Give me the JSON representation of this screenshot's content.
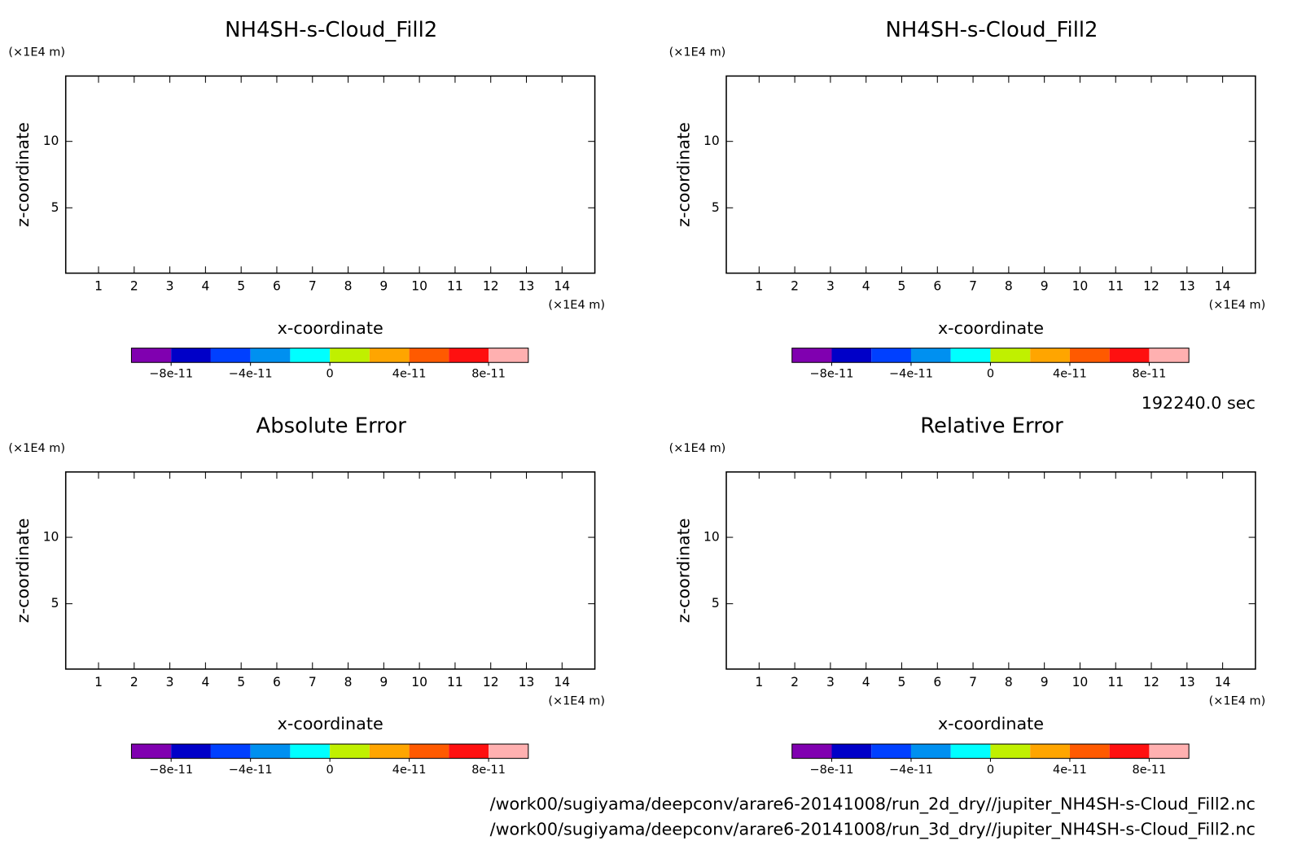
{
  "chart_data": [
    {
      "type": "contour",
      "title": "NH4SH-s-Cloud_Fill2",
      "xlabel": "x-coordinate",
      "ylabel": "z-coordinate",
      "x_unit": "(×1E4 m)",
      "y_unit": "(×1E4 m)",
      "xlim": [
        0.08,
        14.92
      ],
      "ylim": [
        0.08,
        14.92
      ],
      "xticks": [
        1,
        2,
        3,
        4,
        5,
        6,
        7,
        8,
        9,
        10,
        11,
        12,
        13,
        14
      ],
      "yticks": [
        5,
        10
      ],
      "colorbar": {
        "colors": [
          "#8000b0",
          "#0000c8",
          "#0040ff",
          "#0090f0",
          "#00ffff",
          "#c0f000",
          "#ffa500",
          "#ff5a00",
          "#ff1010",
          "#ffb0b0"
        ],
        "levels": [
          -1e-10,
          -8e-11,
          -6e-11,
          -4e-11,
          -2e-11,
          0,
          2e-11,
          4e-11,
          6e-11,
          8e-11,
          1e-10
        ],
        "ticks": [
          {
            "value": -8e-11,
            "label": "−8e-11"
          },
          {
            "value": -4e-11,
            "label": "−4e-11"
          },
          0,
          {
            "value": 4e-11,
            "label": "4e-11"
          },
          {
            "value": 8e-11,
            "label": "8e-11"
          }
        ]
      }
    },
    {
      "type": "contour",
      "title": "NH4SH-s-Cloud_Fill2",
      "xlabel": "x-coordinate",
      "ylabel": "z-coordinate",
      "x_unit": "(×1E4 m)",
      "y_unit": "(×1E4 m)",
      "xlim": [
        0.08,
        14.92
      ],
      "ylim": [
        0.08,
        14.92
      ],
      "xticks": [
        1,
        2,
        3,
        4,
        5,
        6,
        7,
        8,
        9,
        10,
        11,
        12,
        13,
        14
      ],
      "yticks": [
        5,
        10
      ],
      "colorbar": {
        "colors": [
          "#8000b0",
          "#0000c8",
          "#0040ff",
          "#0090f0",
          "#00ffff",
          "#c0f000",
          "#ffa500",
          "#ff5a00",
          "#ff1010",
          "#ffb0b0"
        ],
        "levels": [
          -1e-10,
          -8e-11,
          -6e-11,
          -4e-11,
          -2e-11,
          0,
          2e-11,
          4e-11,
          6e-11,
          8e-11,
          1e-10
        ],
        "ticks": [
          {
            "value": -8e-11,
            "label": "−8e-11"
          },
          {
            "value": -4e-11,
            "label": "−4e-11"
          },
          0,
          {
            "value": 4e-11,
            "label": "4e-11"
          },
          {
            "value": 8e-11,
            "label": "8e-11"
          }
        ]
      }
    },
    {
      "type": "contour",
      "title": "Absolute Error",
      "xlabel": "x-coordinate",
      "ylabel": "z-coordinate",
      "x_unit": "(×1E4 m)",
      "y_unit": "(×1E4 m)",
      "xlim": [
        0.08,
        14.92
      ],
      "ylim": [
        0.08,
        14.92
      ],
      "xticks": [
        1,
        2,
        3,
        4,
        5,
        6,
        7,
        8,
        9,
        10,
        11,
        12,
        13,
        14
      ],
      "yticks": [
        5,
        10
      ],
      "colorbar": {
        "colors": [
          "#8000b0",
          "#0000c8",
          "#0040ff",
          "#0090f0",
          "#00ffff",
          "#c0f000",
          "#ffa500",
          "#ff5a00",
          "#ff1010",
          "#ffb0b0"
        ],
        "levels": [
          -1e-10,
          -8e-11,
          -6e-11,
          -4e-11,
          -2e-11,
          0,
          2e-11,
          4e-11,
          6e-11,
          8e-11,
          1e-10
        ],
        "ticks": [
          {
            "value": -8e-11,
            "label": "−8e-11"
          },
          {
            "value": -4e-11,
            "label": "−4e-11"
          },
          0,
          {
            "value": 4e-11,
            "label": "4e-11"
          },
          {
            "value": 8e-11,
            "label": "8e-11"
          }
        ]
      }
    },
    {
      "type": "contour",
      "title": "Relative Error",
      "xlabel": "x-coordinate",
      "ylabel": "z-coordinate",
      "x_unit": "(×1E4 m)",
      "y_unit": "(×1E4 m)",
      "xlim": [
        0.08,
        14.92
      ],
      "ylim": [
        0.08,
        14.92
      ],
      "xticks": [
        1,
        2,
        3,
        4,
        5,
        6,
        7,
        8,
        9,
        10,
        11,
        12,
        13,
        14
      ],
      "yticks": [
        5,
        10
      ],
      "colorbar": {
        "colors": [
          "#8000b0",
          "#0000c8",
          "#0040ff",
          "#0090f0",
          "#00ffff",
          "#c0f000",
          "#ffa500",
          "#ff5a00",
          "#ff1010",
          "#ffb0b0"
        ],
        "levels": [
          -1e-10,
          -8e-11,
          -6e-11,
          -4e-11,
          -2e-11,
          0,
          2e-11,
          4e-11,
          6e-11,
          8e-11,
          1e-10
        ],
        "ticks": [
          {
            "value": -8e-11,
            "label": "−8e-11"
          },
          {
            "value": -4e-11,
            "label": "−4e-11"
          },
          0,
          {
            "value": 4e-11,
            "label": "4e-11"
          },
          {
            "value": 8e-11,
            "label": "8e-11"
          }
        ]
      }
    }
  ],
  "time_label": "192240.0 sec",
  "file_paths": [
    "/work00/sugiyama/deepconv/arare6-20141008/run_2d_dry//jupiter_NH4SH-s-Cloud_Fill2.nc",
    "/work00/sugiyama/deepconv/arare6-20141008/run_3d_dry//jupiter_NH4SH-s-Cloud_Fill2.nc"
  ]
}
